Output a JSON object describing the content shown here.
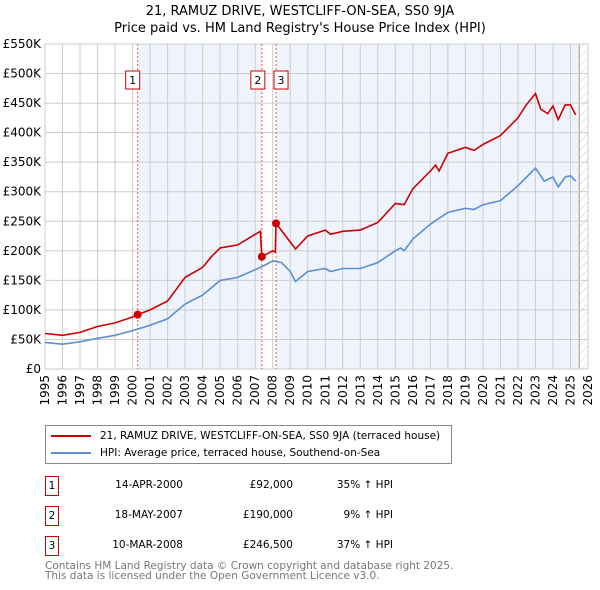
{
  "title_line1": "21, RAMUZ DRIVE, WESTCLIFF-ON-SEA, SS0 9JA",
  "title_line2": "Price paid vs. HM Land Registry's House Price Index (HPI)",
  "chart_data": {
    "type": "line",
    "ylim": [
      0,
      550000
    ],
    "xlim": [
      1995,
      2026
    ],
    "yticks": [
      {
        "v": 0,
        "label": "£0"
      },
      {
        "v": 50000,
        "label": "£50K"
      },
      {
        "v": 100000,
        "label": "£100K"
      },
      {
        "v": 150000,
        "label": "£150K"
      },
      {
        "v": 200000,
        "label": "£200K"
      },
      {
        "v": 250000,
        "label": "£250K"
      },
      {
        "v": 300000,
        "label": "£300K"
      },
      {
        "v": 350000,
        "label": "£350K"
      },
      {
        "v": 400000,
        "label": "£400K"
      },
      {
        "v": 450000,
        "label": "£450K"
      },
      {
        "v": 500000,
        "label": "£500K"
      },
      {
        "v": 550000,
        "label": "£550K"
      }
    ],
    "xticks": [
      "1995",
      "1996",
      "1997",
      "1998",
      "1999",
      "2000",
      "2001",
      "2002",
      "2003",
      "2004",
      "2005",
      "2006",
      "2007",
      "2008",
      "2009",
      "2010",
      "2011",
      "2012",
      "2013",
      "2014",
      "2015",
      "2016",
      "2017",
      "2018",
      "2019",
      "2020",
      "2021",
      "2022",
      "2023",
      "2024",
      "2025",
      "2026"
    ],
    "shaded_ranges": [
      [
        2000.29,
        2007.38
      ],
      [
        2008.19,
        2025.5
      ]
    ],
    "hatch_from": 2025.5,
    "series": [
      {
        "name": "21, RAMUZ DRIVE, WESTCLIFF-ON-SEA, SS0 9JA (terraced house)",
        "color": "#cc0000",
        "x": [
          1995,
          1996,
          1997,
          1998,
          1999,
          2000,
          2000.29,
          2001,
          2002,
          2002.5,
          2003,
          2004,
          2004.5,
          2005,
          2006,
          2007,
          2007.3,
          2007.38,
          2008,
          2008.15,
          2008.19,
          2009,
          2009.3,
          2010,
          2011,
          2011.3,
          2012,
          2013,
          2014,
          2015,
          2015.5,
          2016,
          2017,
          2017.3,
          2017.5,
          2018,
          2019,
          2019.5,
          2020,
          2021,
          2022,
          2022.5,
          2023,
          2023.3,
          2023.7,
          2024,
          2024.3,
          2024.7,
          2025,
          2025.3
        ],
        "y": [
          60000,
          57000,
          62000,
          72000,
          78000,
          88000,
          92000,
          100000,
          115000,
          135000,
          155000,
          172000,
          190000,
          205000,
          210000,
          228000,
          233000,
          190000,
          200000,
          198000,
          246500,
          215000,
          203000,
          225000,
          235000,
          228000,
          233000,
          235000,
          248000,
          280000,
          278000,
          305000,
          335000,
          345000,
          335000,
          365000,
          375000,
          370000,
          380000,
          395000,
          425000,
          448000,
          466000,
          440000,
          432000,
          445000,
          422000,
          447000,
          447000,
          430000
        ]
      },
      {
        "name": "HPI: Average price, terraced house, Southend-on-Sea",
        "color": "#5b8fd0",
        "x": [
          1995,
          1996,
          1997,
          1998,
          1999,
          2000,
          2001,
          2002,
          2003,
          2004,
          2005,
          2006,
          2007,
          2007.5,
          2008,
          2008.5,
          2009,
          2009.3,
          2010,
          2011,
          2011.3,
          2012,
          2013,
          2014,
          2015,
          2015.3,
          2015.5,
          2016,
          2017,
          2017.5,
          2018,
          2019,
          2019.5,
          2020,
          2021,
          2022,
          2022.5,
          2023,
          2023.5,
          2024,
          2024.3,
          2024.7,
          2025,
          2025.3
        ],
        "y": [
          45000,
          42000,
          46000,
          52000,
          57000,
          65000,
          74000,
          85000,
          110000,
          125000,
          150000,
          155000,
          168000,
          175000,
          183000,
          180000,
          165000,
          148000,
          165000,
          170000,
          165000,
          170000,
          170000,
          180000,
          200000,
          205000,
          200000,
          220000,
          245000,
          255000,
          265000,
          272000,
          270000,
          278000,
          285000,
          310000,
          325000,
          340000,
          318000,
          325000,
          308000,
          325000,
          327000,
          318000
        ]
      }
    ],
    "sales": [
      {
        "n": "1",
        "x": 2000.29,
        "date": "14-APR-2000",
        "price": 92000,
        "price_label": "£92,000",
        "hpi": "35% ↑ HPI"
      },
      {
        "n": "2",
        "x": 2007.38,
        "date": "18-MAY-2007",
        "price": 190000,
        "price_label": "£190,000",
        "hpi": "9% ↑ HPI"
      },
      {
        "n": "3",
        "x": 2008.19,
        "date": "10-MAR-2008",
        "price": 246500,
        "price_label": "£246,500",
        "hpi": "37% ↑ HPI"
      }
    ]
  },
  "legend": {
    "red": "21, RAMUZ DRIVE, WESTCLIFF-ON-SEA, SS0 9JA (terraced house)",
    "blue": "HPI: Average price, terraced house, Southend-on-Sea"
  },
  "footer": {
    "line1": "Contains HM Land Registry data © Crown copyright and database right 2025.",
    "line2": "This data is licensed under the Open Government Licence v3.0."
  }
}
